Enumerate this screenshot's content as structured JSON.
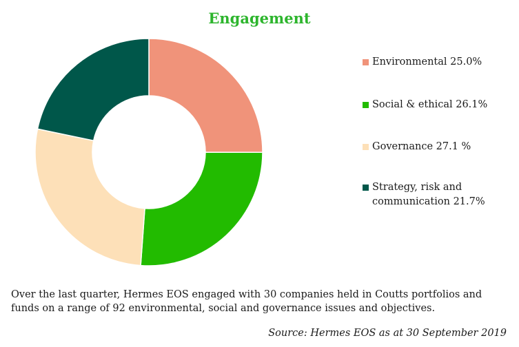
{
  "chart_data": {
    "type": "pie",
    "title": "Engagement",
    "categories": [
      "Environmental",
      "Social & ethical",
      "Governance",
      "Strategy, risk and communication"
    ],
    "values": [
      25.0,
      26.1,
      27.1,
      21.7
    ],
    "legend_labels": [
      "Environmental  25.0%",
      "Social & ethical 26.1%",
      "Governance 27.1 %",
      "Strategy, risk and communication 21.7%"
    ],
    "colors": [
      "#f0937a",
      "#22bb00",
      "#fde0b8",
      "#00574a"
    ],
    "legend_position": "right",
    "donut": true
  },
  "footnote": "Over the last quarter, Hermes EOS engaged with 30 companies held in Coutts portfolios and funds on a range of 92 environmental, social and governance issues and objectives.",
  "source": "Source: Hermes EOS as at 30 September 2019"
}
